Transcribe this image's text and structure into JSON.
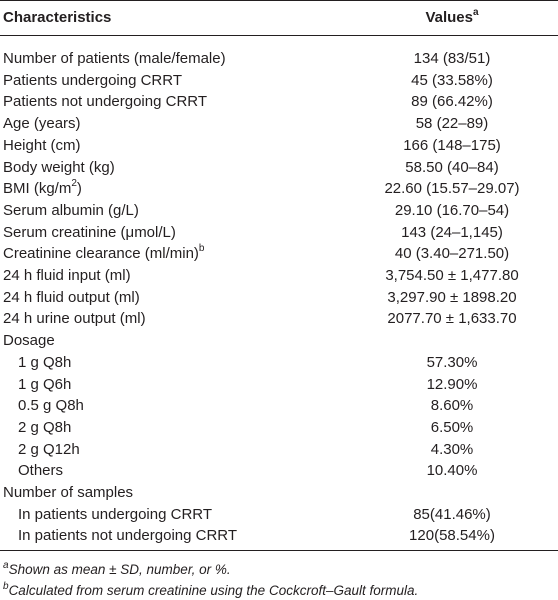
{
  "table": {
    "header": {
      "characteristics": "Characteristics",
      "values": "Values",
      "values_sup": "a"
    },
    "rows": [
      {
        "label": "Number of patients (male/female)",
        "value": "134 (83/51)"
      },
      {
        "label": "Patients undergoing CRRT",
        "value": "45 (33.58%)"
      },
      {
        "label": "Patients not undergoing CRRT",
        "value": "89 (66.42%)"
      },
      {
        "label": "Age (years)",
        "value": "58 (22–89)"
      },
      {
        "label": "Height (cm)",
        "value": "166 (148–175)"
      },
      {
        "label": "Body weight (kg)",
        "value": "58.50 (40–84)"
      },
      {
        "label": "BMI (kg/m",
        "label_sup": "2",
        "label_after": ")",
        "value": "22.60 (15.57–29.07)"
      },
      {
        "label": "Serum albumin (g/L)",
        "value": "29.10 (16.70–54)"
      },
      {
        "label": "Serum creatinine (μmol/L)",
        "value": "143 (24–1,145)"
      },
      {
        "label": "Creatinine clearance (ml/min)",
        "label_sup": "b",
        "value": "40 (3.40–271.50)"
      },
      {
        "label": "24 h fluid input (ml)",
        "value": "3,754.50 ± 1,477.80"
      },
      {
        "label": "24 h fluid output (ml)",
        "value": "3,297.90 ± 1898.20"
      },
      {
        "label": "24 h urine output (ml)",
        "value": "2077.70 ± 1,633.70"
      }
    ],
    "groups": [
      {
        "title": "Dosage",
        "rows": [
          {
            "label": "1 g Q8h",
            "value": "57.30%"
          },
          {
            "label": "1 g Q6h",
            "value": "12.90%"
          },
          {
            "label": "0.5 g Q8h",
            "value": "8.60%"
          },
          {
            "label": "2 g Q8h",
            "value": "6.50%"
          },
          {
            "label": "2 g Q12h",
            "value": "4.30%"
          },
          {
            "label": "Others",
            "value": "10.40%"
          }
        ]
      },
      {
        "title": "Number of samples",
        "rows": [
          {
            "label": "In patients undergoing CRRT",
            "value": "85(41.46%)"
          },
          {
            "label": "In patients not undergoing CRRT",
            "value": "120(58.54%)"
          }
        ]
      }
    ],
    "footnotes": [
      {
        "marker": "a",
        "text": "Shown as mean ± SD, number, or %."
      },
      {
        "marker": "b",
        "text": "Calculated from serum creatinine using the Cockcroft–Gault formula."
      }
    ]
  }
}
